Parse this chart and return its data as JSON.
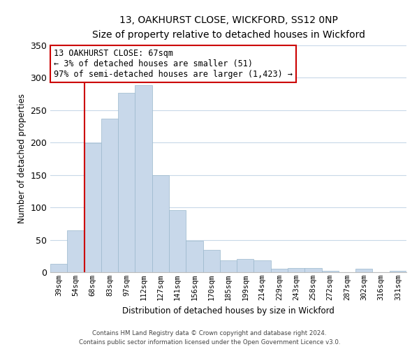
{
  "title": "13, OAKHURST CLOSE, WICKFORD, SS12 0NP",
  "subtitle": "Size of property relative to detached houses in Wickford",
  "xlabel": "Distribution of detached houses by size in Wickford",
  "ylabel": "Number of detached properties",
  "bar_labels": [
    "39sqm",
    "54sqm",
    "68sqm",
    "83sqm",
    "97sqm",
    "112sqm",
    "127sqm",
    "141sqm",
    "156sqm",
    "170sqm",
    "185sqm",
    "199sqm",
    "214sqm",
    "229sqm",
    "243sqm",
    "258sqm",
    "272sqm",
    "287sqm",
    "302sqm",
    "316sqm",
    "331sqm"
  ],
  "bar_values": [
    13,
    65,
    199,
    237,
    277,
    289,
    150,
    96,
    49,
    35,
    18,
    20,
    18,
    5,
    7,
    7,
    2,
    0,
    5,
    0,
    2
  ],
  "bar_color": "#c8d8ea",
  "bar_edge_color": "#9ab8cc",
  "vline_color": "#cc0000",
  "annotation_title": "13 OAKHURST CLOSE: 67sqm",
  "annotation_line1": "← 3% of detached houses are smaller (51)",
  "annotation_line2": "97% of semi-detached houses are larger (1,423) →",
  "annotation_box_color": "#ffffff",
  "annotation_box_edge": "#cc0000",
  "ylim": [
    0,
    350
  ],
  "yticks": [
    0,
    50,
    100,
    150,
    200,
    250,
    300,
    350
  ],
  "grid_color": "#c8d8e8",
  "footer1": "Contains HM Land Registry data © Crown copyright and database right 2024.",
  "footer2": "Contains public sector information licensed under the Open Government Licence v3.0.",
  "fig_width": 6.0,
  "fig_height": 5.0,
  "dpi": 100
}
